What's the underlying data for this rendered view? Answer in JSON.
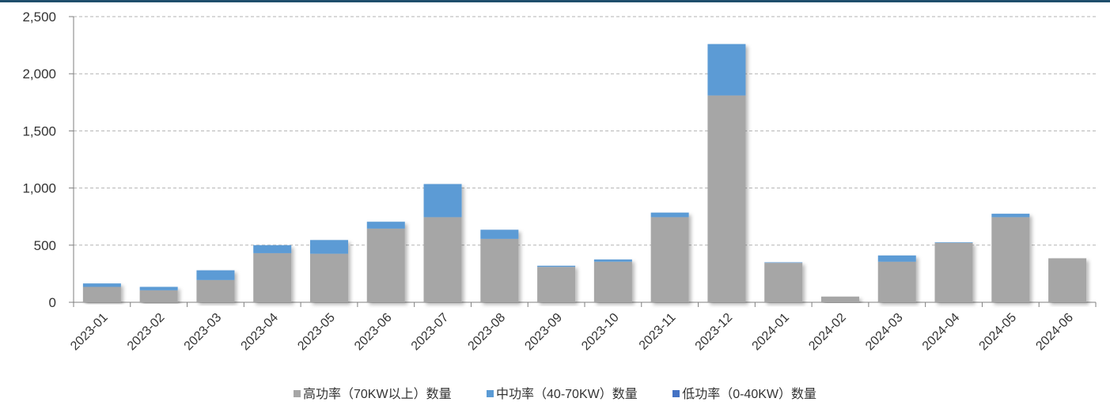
{
  "chart_data": {
    "type": "bar",
    "stacked": true,
    "title": "",
    "xlabel": "",
    "ylabel": "",
    "ylim": [
      0,
      2500
    ],
    "yticks": [
      0,
      500,
      1000,
      1500,
      2000,
      2500
    ],
    "ytick_labels": [
      "0",
      "500",
      "1,000",
      "1,500",
      "2,000",
      "2,500"
    ],
    "grid": "horizontal dashed",
    "legend_position": "bottom",
    "categories": [
      "2023-01",
      "2023-02",
      "2023-03",
      "2023-04",
      "2023-05",
      "2023-06",
      "2023-07",
      "2023-08",
      "2023-09",
      "2023-10",
      "2023-11",
      "2023-12",
      "2024-01",
      "2024-02",
      "2024-03",
      "2024-04",
      "2024-05",
      "2024-06"
    ],
    "series": [
      {
        "name": "高功率（70KW以上）数量",
        "color": "#a6a6a6",
        "values": [
          135,
          105,
          195,
          430,
          425,
          645,
          745,
          555,
          310,
          355,
          745,
          1810,
          345,
          50,
          355,
          520,
          745,
          385
        ]
      },
      {
        "name": "中功率（40-70KW）数量",
        "color": "#5b9bd5",
        "values": [
          30,
          30,
          85,
          70,
          120,
          60,
          290,
          80,
          10,
          20,
          40,
          450,
          5,
          0,
          55,
          5,
          30,
          0
        ]
      },
      {
        "name": "低功率（0-40KW）数量",
        "color": "#4472c4",
        "values": [
          0,
          0,
          0,
          0,
          0,
          0,
          0,
          0,
          0,
          0,
          0,
          0,
          0,
          0,
          0,
          0,
          0,
          0
        ]
      }
    ]
  }
}
